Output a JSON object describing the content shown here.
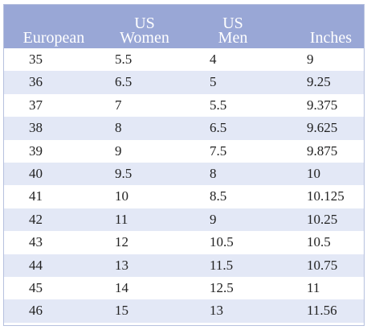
{
  "table": {
    "headers": {
      "european": "European",
      "women_line1": "US",
      "women_line2": "Women",
      "men_line1": "US",
      "men_line2": "Men",
      "inches": "Inches"
    },
    "rows": [
      {
        "european": "35",
        "women": "5.5",
        "men": "4",
        "inches": "9"
      },
      {
        "european": "36",
        "women": "6.5",
        "men": "5",
        "inches": "9.25"
      },
      {
        "european": "37",
        "women": "7",
        "men": "5.5",
        "inches": "9.375"
      },
      {
        "european": "38",
        "women": "8",
        "men": "6.5",
        "inches": "9.625"
      },
      {
        "european": "39",
        "women": "9",
        "men": "7.5",
        "inches": "9.875"
      },
      {
        "european": "40",
        "women": "9.5",
        "men": "8",
        "inches": "10"
      },
      {
        "european": "41",
        "women": "10",
        "men": "8.5",
        "inches": "10.125"
      },
      {
        "european": "42",
        "women": "11",
        "men": "9",
        "inches": "10.25"
      },
      {
        "european": "43",
        "women": "12",
        "men": "10.5",
        "inches": "10.5"
      },
      {
        "european": "44",
        "women": "13",
        "men": "11.5",
        "inches": "10.75"
      },
      {
        "european": "45",
        "women": "14",
        "men": "12.5",
        "inches": "11"
      },
      {
        "european": "46",
        "women": "15",
        "men": "13",
        "inches": "11.56"
      }
    ]
  },
  "colors": {
    "header_background": "#99a7d6",
    "header_text": "#ffffff",
    "alternate_row": "#e3e8f6",
    "border": "#b6c0de"
  }
}
